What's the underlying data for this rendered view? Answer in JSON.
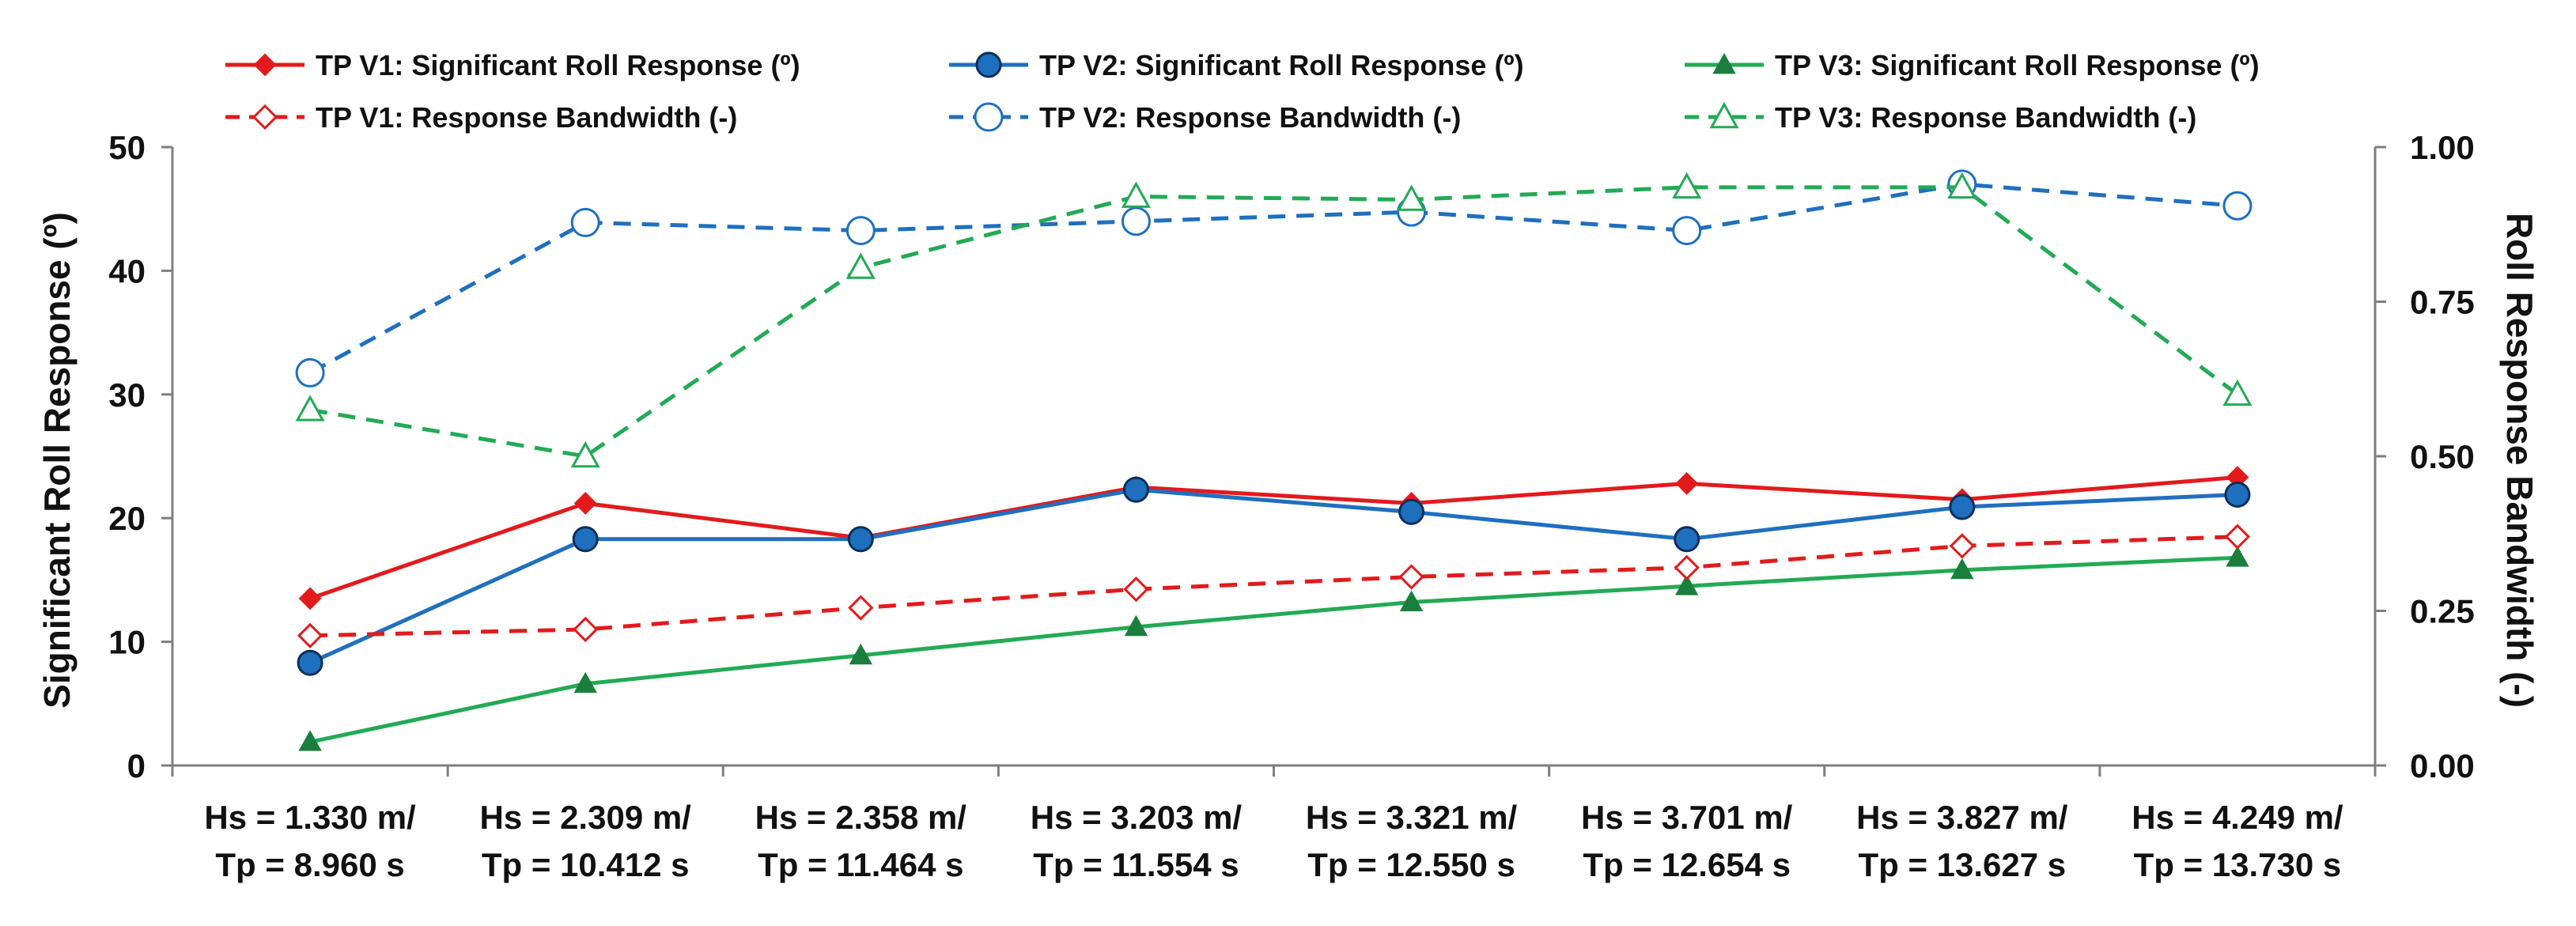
{
  "chart_data": {
    "type": "line",
    "categories": [
      [
        "Hs = 1.330 m/",
        "Tp = 8.960 s"
      ],
      [
        "Hs = 2.309 m/",
        "Tp = 10.412 s"
      ],
      [
        "Hs = 2.358 m/",
        "Tp = 11.464 s"
      ],
      [
        "Hs = 3.203 m/",
        "Tp = 11.554 s"
      ],
      [
        "Hs = 3.321 m/",
        "Tp = 12.550 s"
      ],
      [
        "Hs = 3.701 m/",
        "Tp = 12.654 s"
      ],
      [
        "Hs = 3.827 m/",
        "Tp = 13.627 s"
      ],
      [
        "Hs = 4.249 m/",
        "Tp = 13.730 s"
      ]
    ],
    "ylabel": "Significant Roll Response (º)",
    "y2label": "Roll Response Bandwidth (-)",
    "ylim": [
      0,
      50
    ],
    "yticks": [
      "0",
      "10",
      "20",
      "30",
      "40",
      "50"
    ],
    "y2lim": [
      0,
      1
    ],
    "y2ticks": [
      "0.00",
      "0.25",
      "0.50",
      "0.75",
      "1.00"
    ],
    "grid": false,
    "legend_position": "top",
    "series": [
      {
        "name": "TP V1: Significant Roll Response (º)",
        "axis": "left",
        "color": "#e31a1c",
        "dash": false,
        "marker": "diamond-filled",
        "values": [
          13.5,
          21.2,
          18.4,
          22.5,
          21.2,
          22.8,
          21.5,
          23.3
        ]
      },
      {
        "name": "TP V2: Significant Roll Response (º)",
        "axis": "left",
        "color": "#1f6fbf",
        "dash": false,
        "marker": "circle-filled",
        "values": [
          8.3,
          18.3,
          18.3,
          22.3,
          20.5,
          18.3,
          20.9,
          21.9
        ]
      },
      {
        "name": "TP V3: Significant Roll Response (º)",
        "axis": "left",
        "color": "#22aa55",
        "dash": false,
        "marker": "triangle-filled",
        "values": [
          1.9,
          6.6,
          8.9,
          11.2,
          13.2,
          14.5,
          15.8,
          16.8
        ]
      },
      {
        "name": "TP V1: Response Bandwidth (-)",
        "axis": "right",
        "color": "#e31a1c",
        "dash": true,
        "marker": "diamond-open",
        "values": [
          0.21,
          0.22,
          0.255,
          0.285,
          0.305,
          0.32,
          0.355,
          0.37
        ]
      },
      {
        "name": "TP V2: Response Bandwidth (-)",
        "axis": "right",
        "color": "#1f6fbf",
        "dash": true,
        "marker": "circle-open",
        "values": [
          0.635,
          0.878,
          0.865,
          0.88,
          0.895,
          0.865,
          0.94,
          0.905
        ]
      },
      {
        "name": "TP V3: Response Bandwidth (-)",
        "axis": "right",
        "color": "#22aa55",
        "dash": true,
        "marker": "triangle-open",
        "values": [
          0.575,
          0.5,
          0.805,
          0.92,
          0.915,
          0.935,
          0.935,
          0.6
        ]
      }
    ]
  }
}
